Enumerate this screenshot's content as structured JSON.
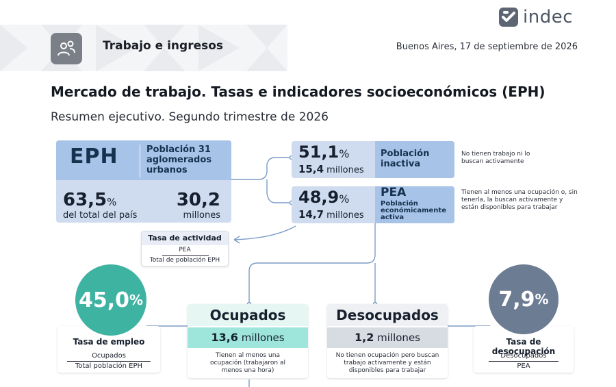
{
  "header": {
    "logo_text": "indec",
    "section": "Trabajo e ingresos",
    "date": "Buenos Aires, 17 de septiembre de 2026"
  },
  "title": "Mercado de trabajo. Tasas e indicadores socioeconómicos (EPH)",
  "subtitle": "Resumen ejecutivo. Segundo trimestre de 2026",
  "eph": {
    "label": "EPH",
    "population": "Población 31 aglomerados urbanos",
    "pct_value": "63,5",
    "pct_unit": "%",
    "pct_label": "del total del país",
    "millions_value": "30,2",
    "millions_label": "millones"
  },
  "inactiva": {
    "pct_value": "51,1",
    "pct_unit": "%",
    "millions_value": "15,4",
    "millions_label": "millones",
    "title": "Población inactiva",
    "note": "No tienen trabajo ni lo buscan activamente"
  },
  "pea": {
    "pct_value": "48,9",
    "pct_unit": "%",
    "millions_value": "14,7",
    "millions_label": "millones",
    "acronym": "PEA",
    "title": "Población económicamente activa",
    "note": "Tienen al menos una ocupación o, sin tenerla, la buscan activamente y están disponibles para trabajar"
  },
  "tasa_actividad": {
    "title": "Tasa de actividad",
    "numerator": "PEA",
    "denominator": "Total de población EPH"
  },
  "empleo": {
    "value": "45,0",
    "unit": "%",
    "title": "Tasa de empleo",
    "numerator": "Ocupados",
    "denominator": "Total población EPH"
  },
  "ocupados": {
    "title": "Ocupados",
    "millions_value": "13,6",
    "millions_label": "millones",
    "desc": "Tienen al menos una ocupación (trabajaron al menos una hora)"
  },
  "desocupados": {
    "title": "Desocupados",
    "millions_value": "1,2",
    "millions_label": "millones",
    "desc": "No tienen ocupación pero buscan trabajo activamente y están disponibles para trabajar"
  },
  "desocupacion": {
    "value": "7,9",
    "unit": "%",
    "title": "Tasa de desocupación",
    "numerator": "Desocupados",
    "denominator": "PEA"
  },
  "colors": {
    "blue_dark": "#a8c3e8",
    "blue_light": "#cfdcf0",
    "teal": "#3fb3a2",
    "teal_light": "#9ee5dc",
    "slate": "#6c7c93",
    "grey_band": "#d7dbe2"
  }
}
